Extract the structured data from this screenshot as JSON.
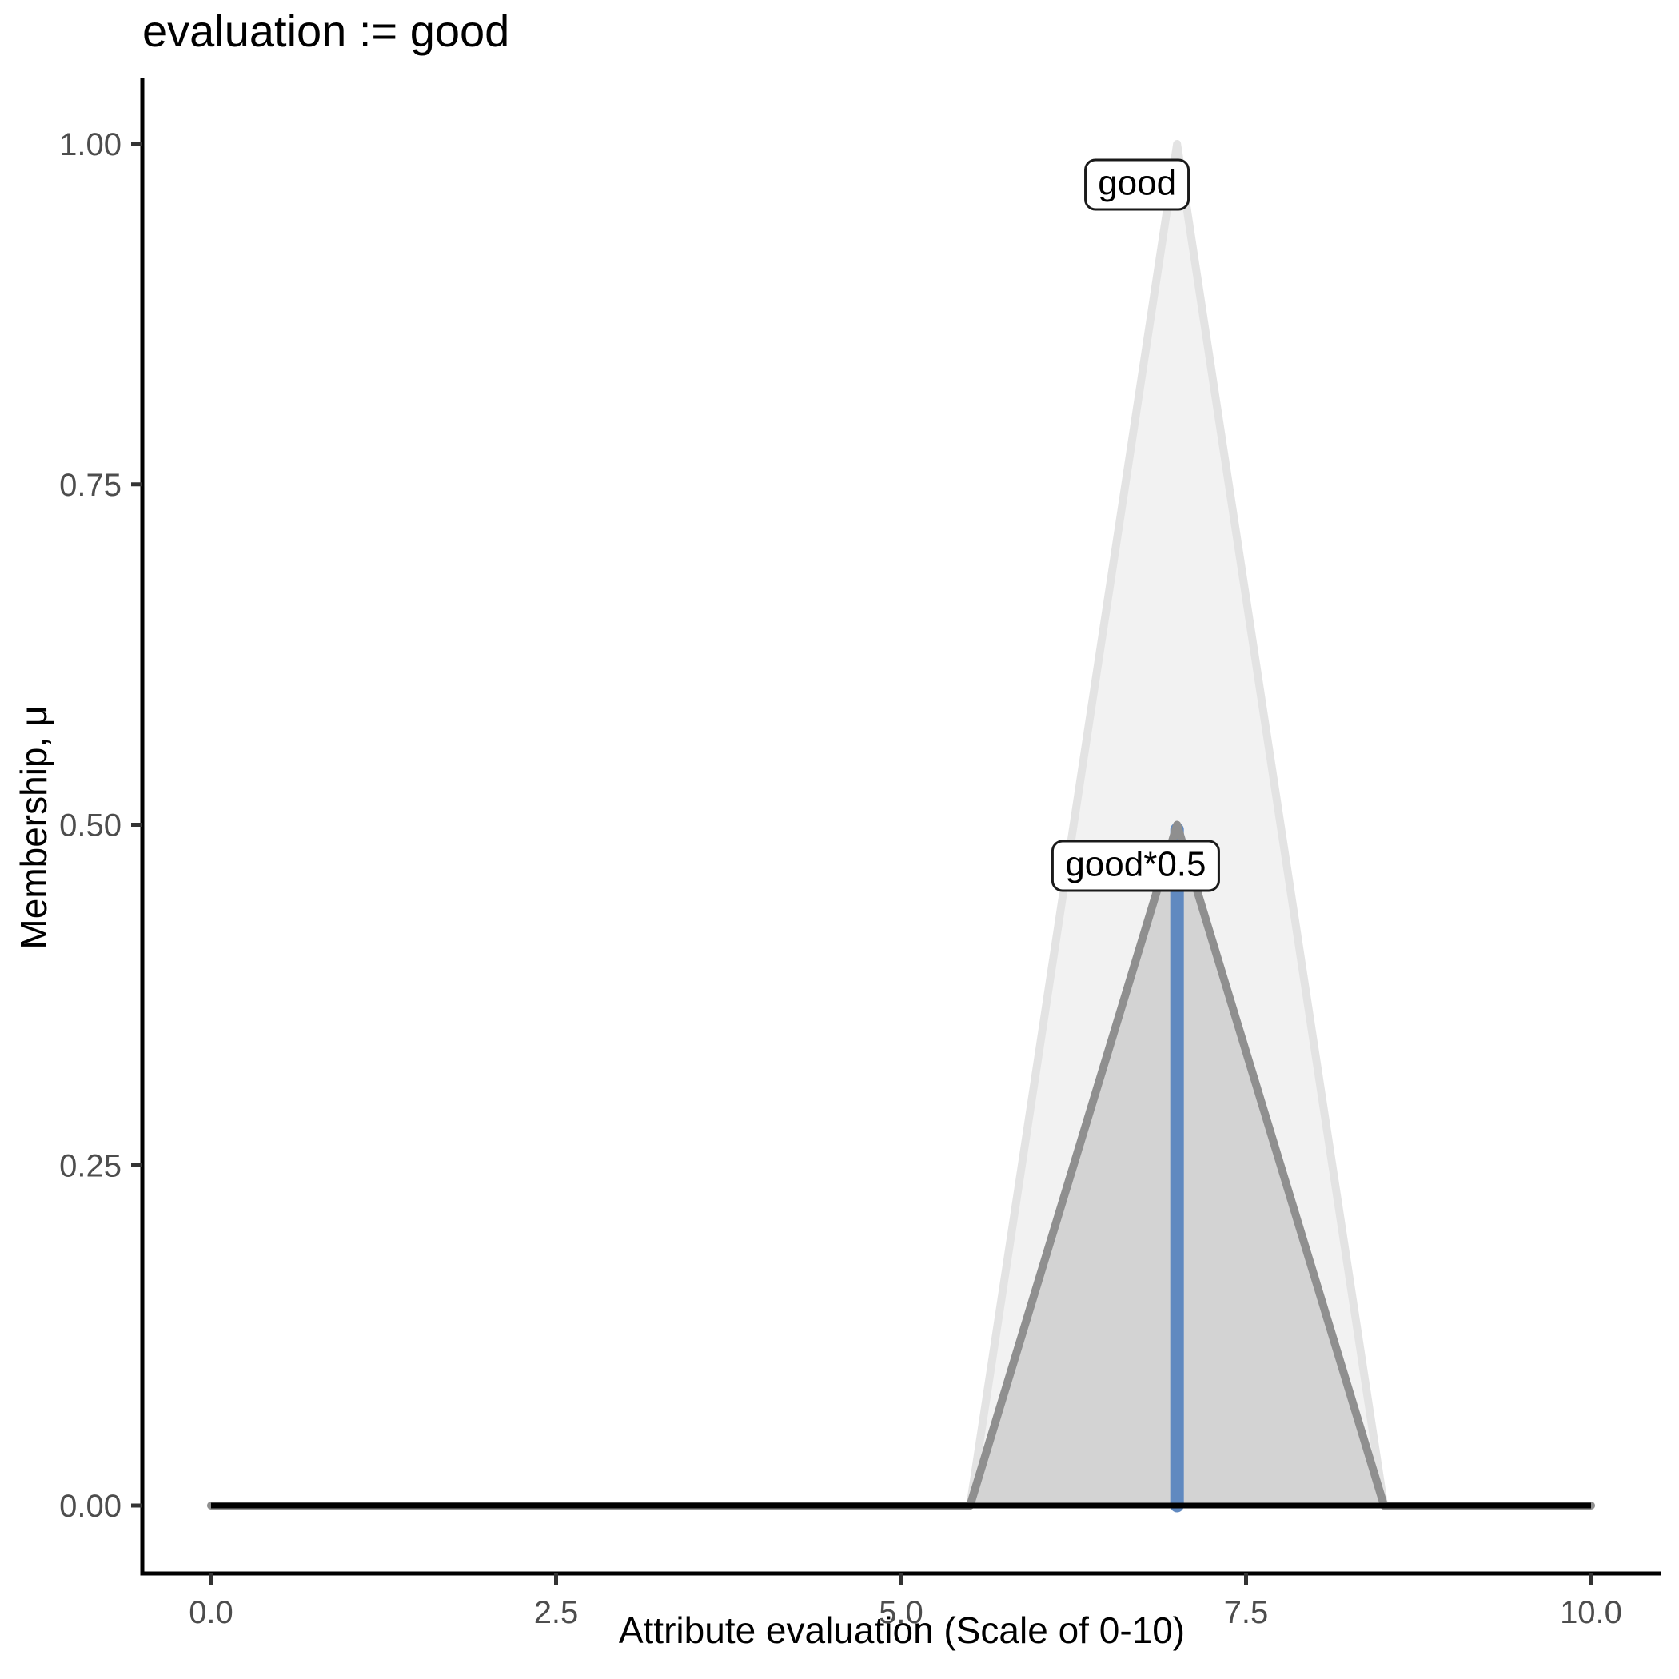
{
  "chart_data": {
    "type": "area",
    "title": "evaluation := good",
    "xlabel": "Attribute evaluation (Scale of 0-10)",
    "ylabel": "Membership, μ",
    "xlim": [
      0,
      10
    ],
    "ylim": [
      0,
      1
    ],
    "grid": "off",
    "legend": "none",
    "x_ticks": {
      "values": [
        0,
        2.5,
        5,
        7.5,
        10
      ],
      "labels": [
        "0.0",
        "2.5",
        "5.0",
        "7.5",
        "10.0"
      ]
    },
    "y_ticks": {
      "values": [
        0,
        0.25,
        0.5,
        0.75,
        1
      ],
      "labels": [
        "0.00",
        "0.25",
        "0.50",
        "0.75",
        "1.00"
      ]
    },
    "series": [
      {
        "name": "good",
        "description": "triangular membership function, peak mu=1 at x=7, support 5.5 to 8.5",
        "points": [
          [
            0,
            0
          ],
          [
            5.5,
            0
          ],
          [
            7,
            1
          ],
          [
            8.5,
            0
          ],
          [
            10,
            0
          ]
        ],
        "stroke": "#e3e3e3",
        "fill": "#f2f2f2",
        "stroke_width": 10
      },
      {
        "name": "good*0.5",
        "description": "same membership function scaled by 0.5, peak mu=0.5 at x=7",
        "points": [
          [
            0,
            0
          ],
          [
            5.5,
            0
          ],
          [
            7,
            0.5
          ],
          [
            8.5,
            0
          ],
          [
            10,
            0
          ]
        ],
        "stroke": "#8f8f8f",
        "fill": "#d3d3d3",
        "stroke_width": 10
      }
    ],
    "marker_line": {
      "x": 7,
      "y0": 0,
      "y1": 0.5,
      "color": "#6089c0",
      "width": 17
    },
    "baseline": {
      "y": 0,
      "x0": 0,
      "x1": 10,
      "color": "#000000",
      "width": 7
    },
    "annotations": [
      {
        "text": "good",
        "x": 6.71,
        "y": 0.97
      },
      {
        "text": "good*0.5",
        "x": 6.7,
        "y": 0.47
      }
    ],
    "axis_color": "#000000",
    "tick_color": "#333333",
    "tick_label_color": "#4d4d4d"
  }
}
